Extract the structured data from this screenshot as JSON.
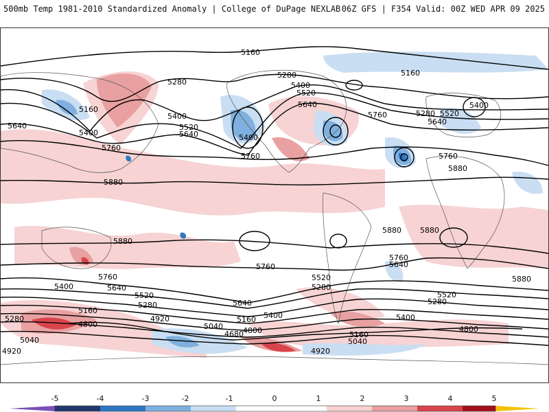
{
  "header": {
    "left_title": "500mb Temp 1981-2010 Standardized Anomaly | College of DuPage NEXLAB",
    "right_title": "06Z GFS | F354 Valid: 00Z WED APR 09 2025"
  },
  "map": {
    "contour_labels": [
      "5160",
      "5280",
      "5400",
      "5520",
      "5640",
      "5760",
      "5880",
      "5040",
      "4920",
      "4800",
      "4680"
    ],
    "legend_values": [
      "-5",
      "-4",
      "-3",
      "-2",
      "-1",
      "0",
      "1",
      "2",
      "3",
      "4",
      "5"
    ],
    "colors": {
      "neg5": "#7b4fb8",
      "neg4": "#23386e",
      "neg3": "#2c78c4",
      "neg2": "#7fb0df",
      "neg1": "#c9def2",
      "zero": "#ffffff",
      "pos1": "#f7d3d3",
      "pos2": "#e8a0a0",
      "pos3": "#d9444b",
      "pos4": "#a3101b",
      "pos5": "#f2c300"
    }
  }
}
